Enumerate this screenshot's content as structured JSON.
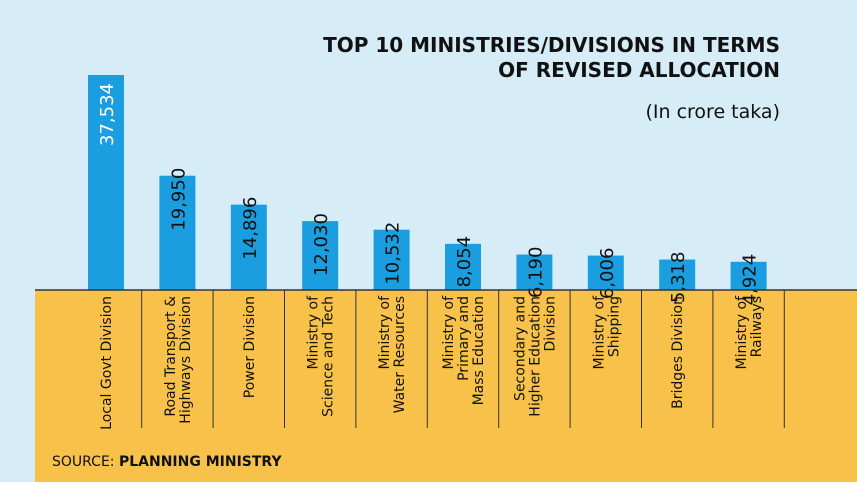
{
  "chart_data": {
    "type": "bar",
    "title_lines": [
      "TOP 10 MINISTRIES/DIVISIONS IN TERMS",
      "OF REVISED ALLOCATION"
    ],
    "unit_note": "(In crore taka)",
    "categories": [
      [
        "Local Govt Division"
      ],
      [
        "Road Transport &",
        "Highways Division"
      ],
      [
        "Power Division"
      ],
      [
        "Ministry of",
        "Science and Tech"
      ],
      [
        "Ministry of",
        "Water Resources"
      ],
      [
        "Ministry of",
        "Primary and",
        "Mass Education"
      ],
      [
        "Secondary and",
        "Higher Education",
        "Division"
      ],
      [
        "Ministry of",
        "Shipping"
      ],
      [
        "Bridges Division"
      ],
      [
        "Ministry of",
        "Railways"
      ]
    ],
    "values": [
      37534,
      19950,
      14896,
      12030,
      10532,
      8054,
      6190,
      6006,
      5318,
      4924
    ],
    "value_labels": [
      "37,534",
      "19,950",
      "14,896",
      "12,030",
      "10,532",
      "8,054",
      "6,190",
      "6,006",
      "5,318",
      "4,924"
    ],
    "ylim": [
      0,
      37534
    ],
    "grid": false,
    "source_prefix": "SOURCE: ",
    "source_name": "PLANNING MINISTRY",
    "colors": {
      "background": "#d6ecf7",
      "bar": "#1a9ee0",
      "panel": "#f8c24a",
      "line": "#333333"
    }
  }
}
